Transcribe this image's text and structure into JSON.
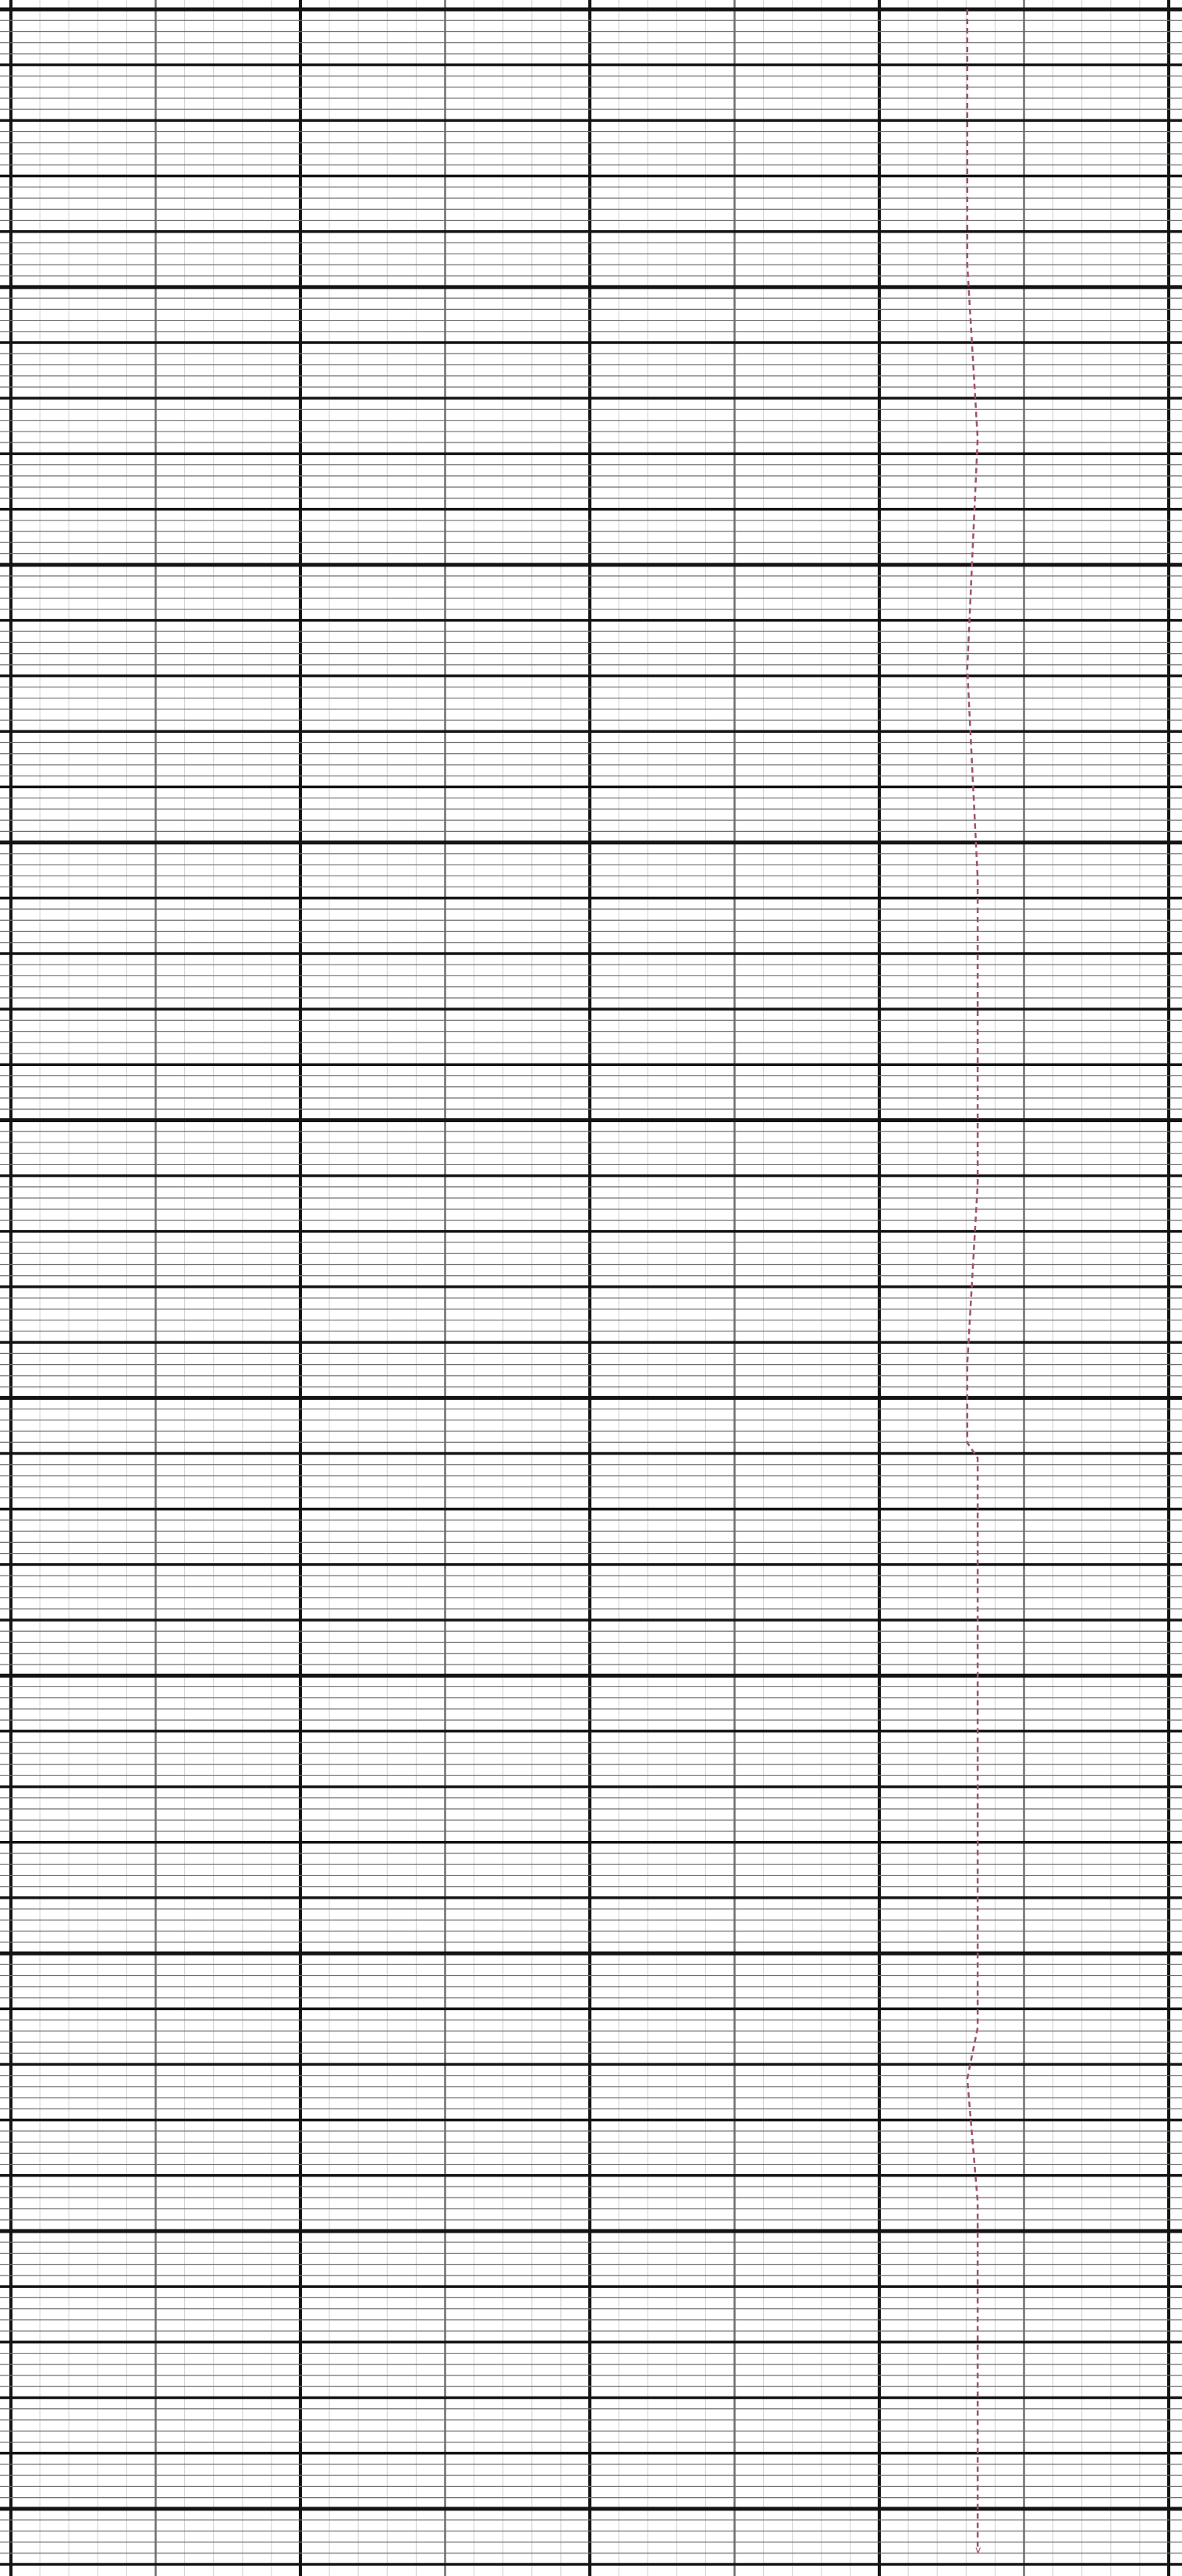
{
  "colors": {
    "background": "#ffffff",
    "minor_grid": "#cfcfcf",
    "medium_grid": "#6e6e6e",
    "major_grid": "#141414",
    "trace": "#a05070"
  },
  "chart_data": {
    "type": "line",
    "orientation": "vertical",
    "title": "",
    "xlabel": "",
    "ylabel": "",
    "grid": true,
    "xlim": [
      0,
      1
    ],
    "ylim": [
      0,
      1
    ],
    "series": [
      {
        "line_style": "dashed",
        "color": "#a05070",
        "points": [
          [
            0.826,
            0.0
          ],
          [
            0.826,
            0.1
          ],
          [
            0.835,
            0.168
          ],
          [
            0.826,
            0.258
          ],
          [
            0.835,
            0.34
          ],
          [
            0.835,
            0.46
          ],
          [
            0.826,
            0.53
          ],
          [
            0.826,
            0.561
          ],
          [
            0.835,
            0.567
          ],
          [
            0.835,
            0.79
          ],
          [
            0.826,
            0.81
          ],
          [
            0.835,
            0.858
          ],
          [
            0.835,
            0.995
          ]
        ]
      }
    ],
    "end_mark": "v"
  }
}
